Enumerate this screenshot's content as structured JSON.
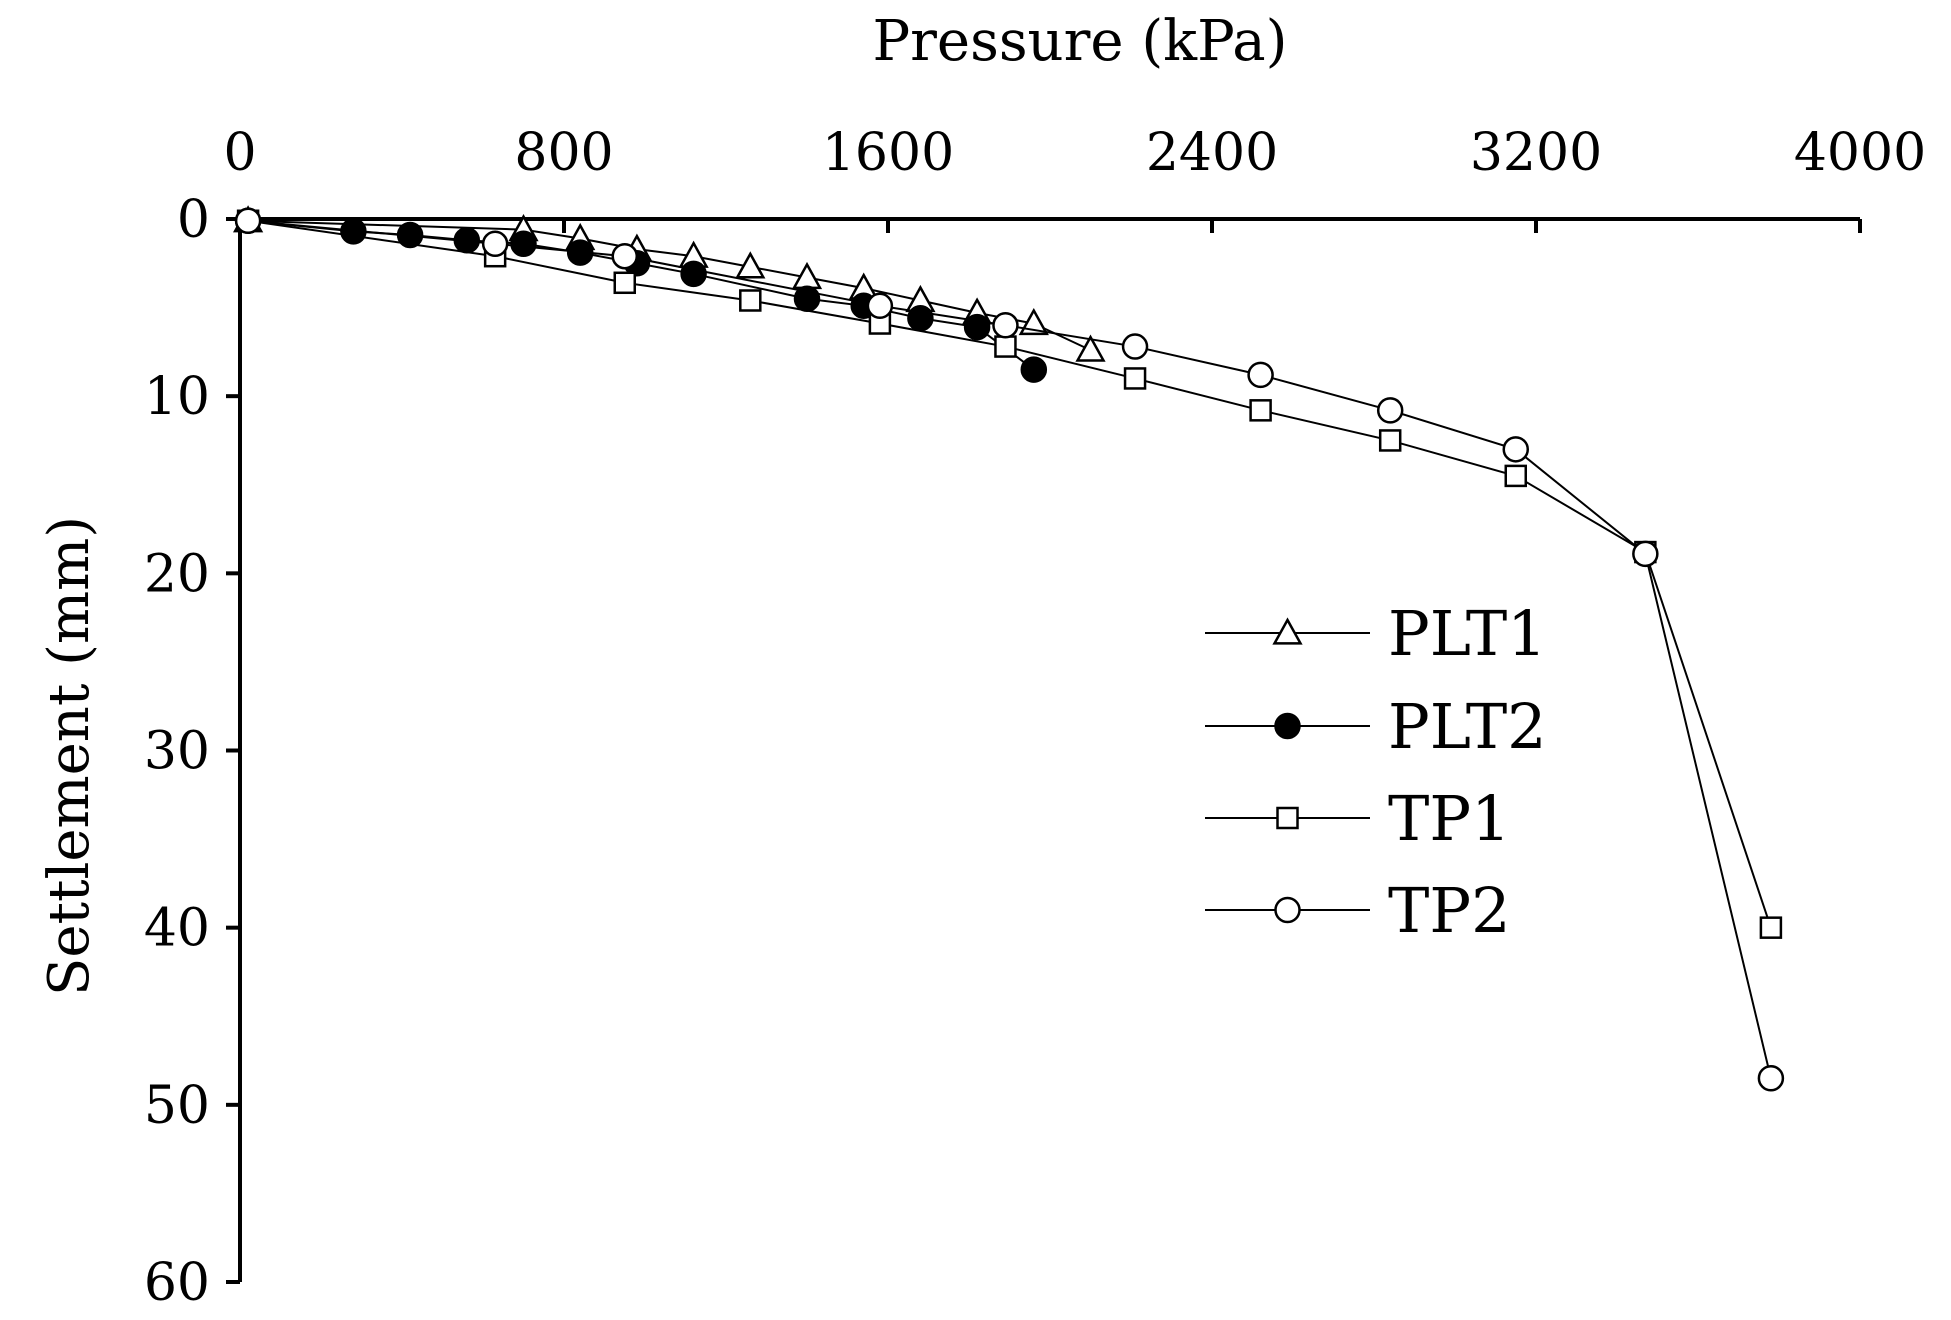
{
  "chart_data": {
    "type": "line",
    "xlabel": "Pressure (kPa)",
    "ylabel": "Settlement (mm)",
    "x_axis_position": "top",
    "y_axis_inverted": true,
    "xlim": [
      0,
      4000
    ],
    "ylim": [
      0,
      60
    ],
    "xticks": [
      0,
      800,
      1600,
      2400,
      3200,
      4000
    ],
    "yticks": [
      0,
      10,
      20,
      30,
      40,
      50,
      60
    ],
    "grid": false,
    "legend_position": "center-right",
    "series": [
      {
        "name": "PLT1",
        "marker": "triangle-open",
        "x": [
          20,
          700,
          840,
          980,
          1120,
          1260,
          1400,
          1540,
          1680,
          1820,
          1960,
          2100
        ],
        "y": [
          0.1,
          0.6,
          1.1,
          1.7,
          2.1,
          2.7,
          3.3,
          3.9,
          4.6,
          5.3,
          5.9,
          7.4
        ]
      },
      {
        "name": "PLT2",
        "marker": "circle-filled",
        "x": [
          20,
          280,
          420,
          560,
          700,
          840,
          980,
          1120,
          1400,
          1540,
          1680,
          1820,
          1960
        ],
        "y": [
          0.1,
          0.7,
          0.9,
          1.2,
          1.4,
          1.9,
          2.5,
          3.1,
          4.5,
          4.9,
          5.6,
          6.1,
          8.5
        ]
      },
      {
        "name": "TP1",
        "marker": "square-open",
        "x": [
          20,
          630,
          950,
          1260,
          1580,
          1890,
          2210,
          2520,
          2840,
          3150,
          3470,
          3780
        ],
        "y": [
          0.1,
          2.1,
          3.6,
          4.6,
          5.9,
          7.2,
          9.0,
          10.8,
          12.5,
          14.5,
          18.8,
          40.0
        ]
      },
      {
        "name": "TP2",
        "marker": "circle-open",
        "x": [
          20,
          630,
          950,
          1580,
          1890,
          2210,
          2520,
          2840,
          3150,
          3470,
          3780
        ],
        "y": [
          0.1,
          1.4,
          2.1,
          4.9,
          6.0,
          7.2,
          8.8,
          10.8,
          13.0,
          18.9,
          48.5
        ]
      }
    ]
  }
}
